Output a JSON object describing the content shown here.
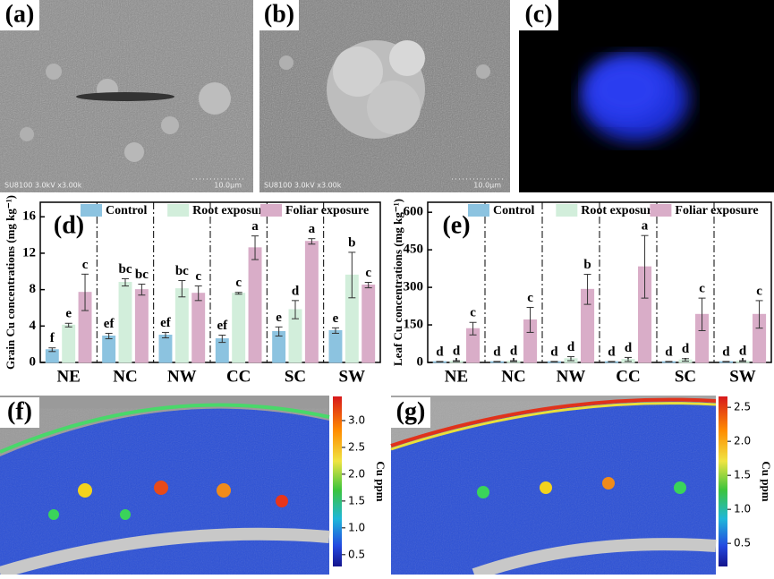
{
  "panels": [
    {
      "label": "(a)",
      "instrument": "SU8100 3.0kV x3.00k",
      "scale": "10.0μm"
    },
    {
      "label": "(b)",
      "instrument": "SU8100 3.0kV x3.00k",
      "scale": "10.0μm"
    },
    {
      "label": "(c)"
    }
  ],
  "chart_data": [
    {
      "type": "bar",
      "panel_label": "(d)",
      "y_label": "Grain Cu concentrations (mg kg⁻¹)",
      "categories": [
        "NE",
        "NC",
        "NW",
        "CC",
        "SC",
        "SW"
      ],
      "series": [
        {
          "name": "Control",
          "color": "#8cc3e0",
          "values": [
            1.4,
            2.9,
            3.0,
            2.6,
            3.4,
            3.5
          ],
          "errors": [
            0.2,
            0.3,
            0.3,
            0.4,
            0.5,
            0.3
          ],
          "letters": [
            "f",
            "ef",
            "ef",
            "ef",
            "e",
            "e"
          ]
        },
        {
          "name": "Root exposure",
          "color": "#d2eedb",
          "values": [
            4.1,
            8.8,
            8.1,
            7.6,
            5.8,
            9.6
          ],
          "errors": [
            0.2,
            0.4,
            0.9,
            0.1,
            1.0,
            2.5
          ],
          "letters": [
            "e",
            "bc",
            "bc",
            "c",
            "d",
            "b"
          ]
        },
        {
          "name": "Foliar exposure",
          "color": "#d9adc8",
          "values": [
            7.7,
            8.0,
            7.6,
            12.6,
            13.3,
            8.5
          ],
          "errors": [
            2.0,
            0.6,
            0.8,
            1.3,
            0.3,
            0.3
          ],
          "letters": [
            "c",
            "bc",
            "c",
            "a",
            "a",
            "c"
          ]
        }
      ],
      "ylim": [
        0,
        17.6
      ],
      "yticks": [
        0,
        4,
        8,
        12,
        16
      ],
      "legend": "top"
    },
    {
      "type": "bar",
      "panel_label": "(e)",
      "y_label": "Leaf Cu concentrations (mg kg⁻¹)",
      "categories": [
        "NE",
        "NC",
        "NW",
        "CC",
        "SC",
        "SW"
      ],
      "series": [
        {
          "name": "Control",
          "color": "#8cc3e0",
          "values": [
            3,
            3,
            3,
            3,
            3,
            3
          ],
          "errors": [
            1,
            1,
            1,
            1,
            1,
            1
          ],
          "letters": [
            "d",
            "d",
            "d",
            "d",
            "d",
            "d"
          ]
        },
        {
          "name": "Root exposure",
          "color": "#d2eedb",
          "values": [
            5,
            5,
            15,
            12,
            10,
            5
          ],
          "errors": [
            2,
            2,
            8,
            8,
            5,
            2
          ],
          "letters": [
            "d",
            "d",
            "d",
            "d",
            "d",
            "d"
          ]
        },
        {
          "name": "Foliar exposure",
          "color": "#d9adc8",
          "values": [
            135,
            170,
            292,
            382,
            192,
            192
          ],
          "errors": [
            25,
            50,
            60,
            125,
            65,
            55
          ],
          "letters": [
            "c",
            "c",
            "b",
            "a",
            "c",
            "c"
          ]
        }
      ],
      "ylim": [
        0,
        640
      ],
      "yticks": [
        0,
        150,
        300,
        450,
        600
      ],
      "legend": "top"
    }
  ],
  "maps": [
    {
      "label": "(f)",
      "colorbar_label": "Cu ppm",
      "clim": [
        0.28,
        3.45
      ],
      "ticks": [
        0.5,
        {
          "value": 1.0,
          "label": "1.0"
        },
        1.5,
        {
          "value": 2.0,
          "label": "2.0"
        },
        2.5,
        {
          "value": 3.0,
          "label": "3.0"
        }
      ]
    },
    {
      "label": "(g)",
      "colorbar_label": "Cu ppm",
      "clim": [
        0.16,
        2.66
      ],
      "ticks": [
        0.5,
        {
          "value": 1.0,
          "label": "1.0"
        },
        1.5,
        {
          "value": 2.0,
          "label": "2.0"
        },
        2.5
      ]
    }
  ]
}
